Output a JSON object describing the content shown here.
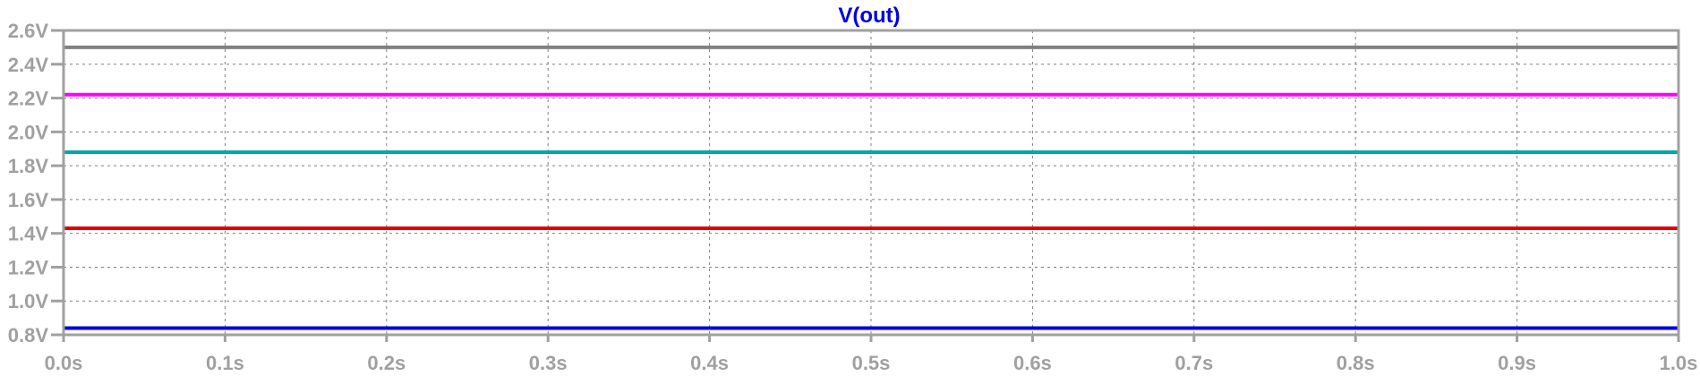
{
  "chart_data": {
    "type": "line",
    "title": "V(out)",
    "x_ticks": [
      "0.0s",
      "0.1s",
      "0.2s",
      "0.3s",
      "0.4s",
      "0.5s",
      "0.6s",
      "0.7s",
      "0.8s",
      "0.9s",
      "1.0s"
    ],
    "y_ticks": [
      "0.8V",
      "1.0V",
      "1.2V",
      "1.4V",
      "1.6V",
      "1.8V",
      "2.0V",
      "2.2V",
      "2.4V",
      "2.6V"
    ],
    "xlim": [
      0.0,
      1.0
    ],
    "ylim": [
      0.8,
      2.6
    ],
    "grid": true,
    "series": [
      {
        "color": "#808080",
        "x": [
          0.0,
          1.0
        ],
        "y": [
          2.5,
          2.5
        ]
      },
      {
        "color": "#ff00ff",
        "x": [
          0.0,
          1.0
        ],
        "y": [
          2.22,
          2.22
        ]
      },
      {
        "color": "#00a8a8",
        "x": [
          0.0,
          1.0
        ],
        "y": [
          1.88,
          1.88
        ]
      },
      {
        "color": "#e00000",
        "x": [
          0.0,
          1.0
        ],
        "y": [
          1.43,
          1.43
        ]
      },
      {
        "color": "#0000e0",
        "x": [
          0.0,
          1.0
        ],
        "y": [
          0.84,
          0.84
        ]
      }
    ]
  },
  "colors": {
    "title": "#0000e0",
    "axis": "#a0a0a0",
    "grid": "#808080"
  }
}
